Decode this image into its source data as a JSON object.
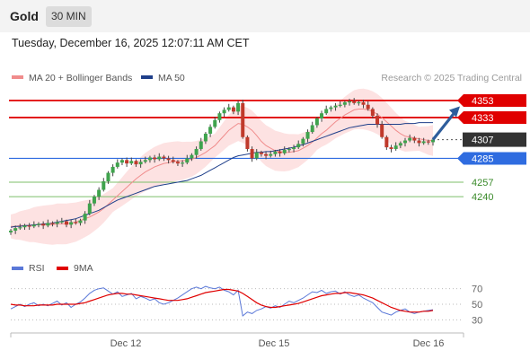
{
  "header": {
    "title": "Gold",
    "timeframe": "30 MIN"
  },
  "timestamp": "Tuesday, December 16, 2025 12:07:11 AM CET",
  "chart_data": [
    {
      "type": "candlestick",
      "legend": [
        {
          "name": "MA 20 + Bollinger Bands",
          "color": "#f08c8c"
        },
        {
          "name": "MA 50",
          "color": "#1f3f8a"
        }
      ],
      "credit": "Research © 2025 Trading Central",
      "x_ticks": [
        "Dec 12",
        "Dec 15",
        "Dec 16"
      ],
      "ylim": [
        4195,
        4378
      ],
      "current_price": 4307,
      "levels": [
        {
          "value": 4353,
          "label": "4353",
          "role": "resistance",
          "color": "#e00000"
        },
        {
          "value": 4333,
          "label": "4333",
          "role": "resistance",
          "color": "#e00000"
        },
        {
          "value": 4307,
          "label": "4307",
          "role": "last",
          "color": "#333333"
        },
        {
          "value": 4285,
          "label": "4285",
          "role": "pivot",
          "color": "#2f6ce0"
        },
        {
          "value": 4257,
          "label": "4257",
          "role": "support",
          "color": "#4c9a3a"
        },
        {
          "value": 4240,
          "label": "4240",
          "role": "support",
          "color": "#4c9a3a"
        }
      ],
      "forecast_arrow": {
        "from": 4307,
        "to": 4343,
        "direction": "up"
      },
      "series": [
        {
          "name": "Price",
          "values": [
            4200,
            4203,
            4204,
            4206,
            4205,
            4207,
            4208,
            4206,
            4209,
            4208,
            4210,
            4211,
            4207,
            4210,
            4209,
            4212,
            4220,
            4232,
            4240,
            4248,
            4258,
            4268,
            4275,
            4280,
            4283,
            4279,
            4282,
            4278,
            4281,
            4283,
            4286,
            4284,
            4287,
            4285,
            4283,
            4281,
            4279,
            4280,
            4285,
            4289,
            4296,
            4305,
            4314,
            4322,
            4330,
            4338,
            4342,
            4345,
            4340,
            4350,
            4310,
            4296,
            4285,
            4292,
            4290,
            4288,
            4290,
            4293,
            4291,
            4295,
            4296,
            4298,
            4302,
            4308,
            4316,
            4324,
            4332,
            4338,
            4343,
            4345,
            4347,
            4348,
            4351,
            4352,
            4350,
            4351,
            4348,
            4343,
            4335,
            4325,
            4310,
            4298,
            4296,
            4300,
            4303,
            4306,
            4309,
            4306,
            4303,
            4305,
            4304,
            4307
          ]
        },
        {
          "name": "MA 20",
          "values": [
            4205,
            4205,
            4206,
            4206,
            4206,
            4207,
            4207,
            4207,
            4207,
            4207,
            4208,
            4208,
            4208,
            4209,
            4210,
            4212,
            4214,
            4216,
            4219,
            4222,
            4226,
            4231,
            4236,
            4241,
            4246,
            4251,
            4256,
            4261,
            4265,
            4269,
            4272,
            4275,
            4277,
            4279,
            4280,
            4281,
            4282,
            4282,
            4283,
            4284,
            4286,
            4289,
            4292,
            4296,
            4300,
            4306,
            4312,
            4318,
            4322,
            4326,
            4325,
            4322,
            4318,
            4312,
            4305,
            4300,
            4297,
            4294,
            4293,
            4292,
            4292,
            4293,
            4294,
            4297,
            4300,
            4304,
            4309,
            4314,
            4318,
            4323,
            4328,
            4332,
            4336,
            4339,
            4342,
            4343,
            4343,
            4342,
            4340,
            4337,
            4333,
            4328,
            4323,
            4318,
            4314,
            4311,
            4310,
            4309,
            4308,
            4307,
            4306,
            4306
          ]
        },
        {
          "name": "MA 50",
          "values": [
            4204,
            4205,
            4205,
            4206,
            4206,
            4207,
            4207,
            4208,
            4208,
            4209,
            4210,
            4211,
            4212,
            4213,
            4214,
            4216,
            4218,
            4220,
            4222,
            4224,
            4227,
            4230,
            4233,
            4236,
            4238,
            4240,
            4242,
            4244,
            4246,
            4248,
            4250,
            4252,
            4253,
            4254,
            4255,
            4256,
            4257,
            4258,
            4259,
            4261,
            4263,
            4265,
            4268,
            4271,
            4274,
            4277,
            4280,
            4283,
            4286,
            4288,
            4289,
            4290,
            4291,
            4292,
            4292,
            4293,
            4293,
            4294,
            4295,
            4296,
            4297,
            4298,
            4300,
            4301,
            4303,
            4305,
            4307,
            4309,
            4311,
            4313,
            4315,
            4317,
            4319,
            4321,
            4322,
            4323,
            4324,
            4325,
            4325,
            4325,
            4325,
            4325,
            4325,
            4325,
            4325,
            4326,
            4326,
            4326,
            4327,
            4327,
            4327,
            4327
          ]
        }
      ]
    },
    {
      "type": "line",
      "legend": [
        {
          "name": "RSI",
          "color": "#5a78d8"
        },
        {
          "name": "9MA",
          "color": "#e00000"
        }
      ],
      "ylim": [
        20,
        80
      ],
      "y_ticks": [
        70,
        50,
        30
      ],
      "series": [
        {
          "name": "RSI",
          "values": [
            44,
            47,
            50,
            47,
            50,
            52,
            48,
            50,
            48,
            51,
            54,
            49,
            52,
            46,
            50,
            53,
            58,
            64,
            68,
            70,
            71,
            67,
            63,
            66,
            60,
            62,
            64,
            57,
            60,
            58,
            55,
            57,
            52,
            50,
            52,
            55,
            58,
            62,
            66,
            70,
            72,
            70,
            73,
            71,
            70,
            72,
            68,
            66,
            62,
            68,
            35,
            40,
            38,
            42,
            44,
            47,
            45,
            48,
            46,
            50,
            54,
            52,
            55,
            58,
            62,
            66,
            65,
            68,
            64,
            66,
            67,
            63,
            66,
            62,
            60,
            62,
            58,
            55,
            52,
            46,
            40,
            38,
            36,
            40,
            42,
            44,
            40,
            38,
            40,
            41,
            42,
            43
          ]
        },
        {
          "name": "9MA",
          "values": [
            50,
            49,
            49,
            48,
            48,
            48,
            49,
            49,
            49,
            49,
            50,
            50,
            50,
            50,
            50,
            51,
            52,
            54,
            56,
            58,
            60,
            62,
            63,
            64,
            64,
            63,
            63,
            62,
            61,
            60,
            59,
            58,
            57,
            56,
            55,
            55,
            55,
            56,
            57,
            59,
            61,
            63,
            65,
            66,
            67,
            68,
            69,
            69,
            68,
            67,
            64,
            60,
            56,
            52,
            49,
            47,
            46,
            46,
            47,
            48,
            49,
            50,
            51,
            53,
            55,
            57,
            59,
            61,
            62,
            63,
            64,
            64,
            65,
            65,
            64,
            63,
            62,
            60,
            58,
            55,
            52,
            49,
            46,
            44,
            42,
            41,
            40,
            40,
            40,
            41,
            41,
            42
          ]
        }
      ]
    }
  ]
}
